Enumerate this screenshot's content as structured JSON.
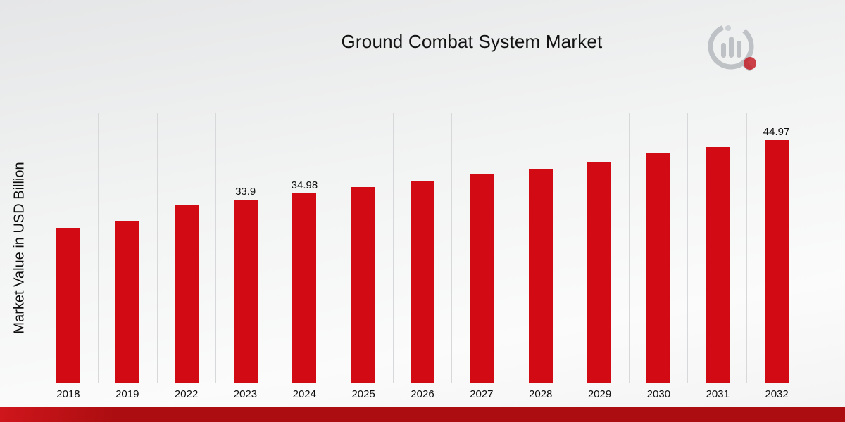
{
  "chart_data": {
    "type": "bar",
    "title": "Ground Combat System Market",
    "xlabel": "",
    "ylabel": "Market Value in USD Billion",
    "categories": [
      "2018",
      "2019",
      "2022",
      "2023",
      "2024",
      "2025",
      "2026",
      "2027",
      "2028",
      "2029",
      "2030",
      "2031",
      "2032"
    ],
    "values": [
      28.6,
      29.9,
      32.8,
      33.9,
      34.98,
      36.2,
      37.3,
      38.5,
      39.6,
      40.9,
      42.4,
      43.6,
      44.97
    ],
    "bar_labels": [
      "",
      "",
      "",
      "33.9",
      "34.98",
      "",
      "",
      "",
      "",
      "",
      "",
      "",
      "44.97"
    ],
    "ylim": [
      0,
      50
    ],
    "bar_color": "#d20a13",
    "grid": "vertical-column-separators",
    "legend": "none"
  },
  "branding": {
    "logo_icon": "market-research-chart-magnifier-logo",
    "logo_gray": "#b9bdc1",
    "logo_red": "#c00b13"
  },
  "footer": {
    "stripe_color": "#ab0d10",
    "stripe_light": "#cf161c"
  }
}
